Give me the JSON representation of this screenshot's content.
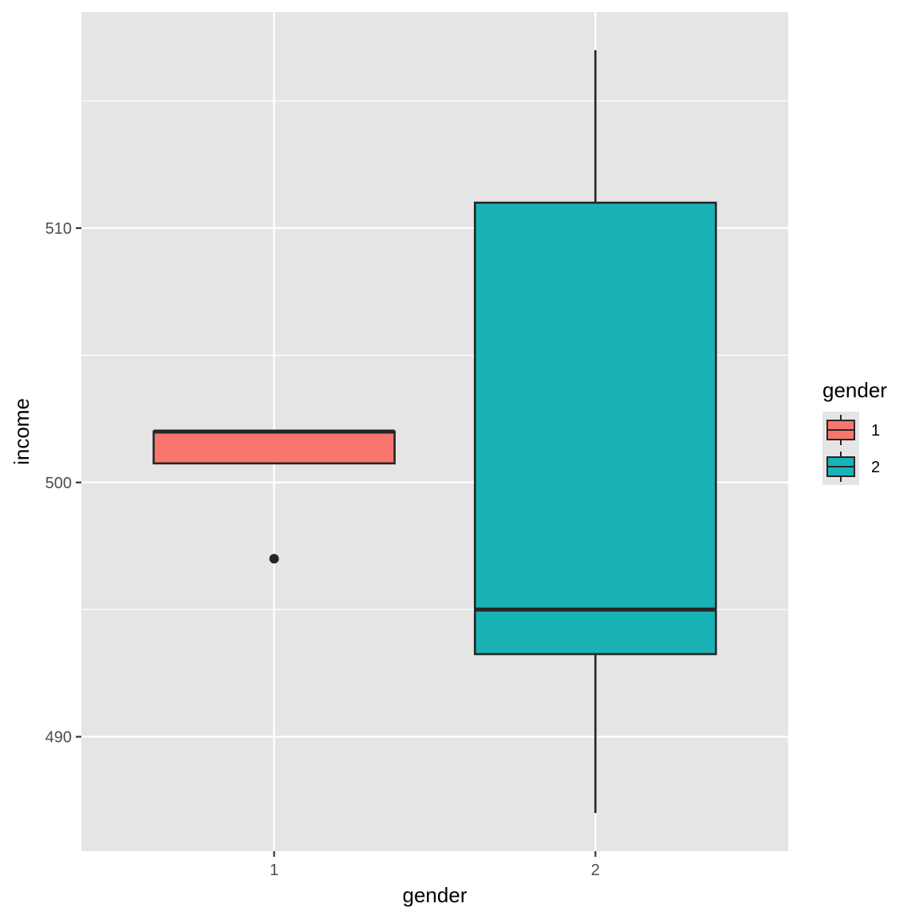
{
  "chart_data": {
    "type": "box",
    "xlabel": "gender",
    "ylabel": "income",
    "categories": [
      "1",
      "2"
    ],
    "y_ticks": [
      490,
      500,
      510
    ],
    "ylim": [
      485.5,
      518.5
    ],
    "grid": true,
    "boxes": [
      {
        "category": "1",
        "q1": 500.75,
        "median": 502.0,
        "q3": 502.0,
        "whisker_low": 500.75,
        "whisker_high": 502.0,
        "outliers": [
          497.0
        ],
        "fill": "#f8766d"
      },
      {
        "category": "2",
        "q1": 493.25,
        "median": 495.0,
        "q3": 511.0,
        "whisker_low": 487.0,
        "whisker_high": 517.0,
        "outliers": [],
        "fill": "#19b3b6"
      }
    ],
    "legend": {
      "title": "gender",
      "position": "right",
      "items": [
        {
          "label": "1",
          "fill": "#f8766d"
        },
        {
          "label": "2",
          "fill": "#19b3b6"
        }
      ]
    },
    "colors": {
      "panel_background": "#e5e5e5",
      "grid": "#ffffff",
      "box_outline": "#262626"
    }
  }
}
